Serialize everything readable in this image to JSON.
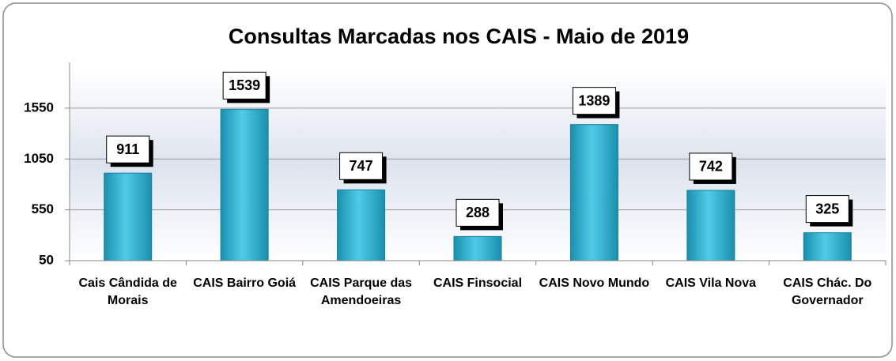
{
  "chart_data": {
    "type": "bar",
    "title": "Consultas Marcadas nos CAIS - Maio de 2019",
    "categories": [
      "Cais Cândida de Morais",
      "CAIS Bairro Goiá",
      "CAIS Parque das Amendoeiras",
      "CAIS Finsocial",
      "CAIS Novo Mundo",
      "CAIS Vila Nova",
      "CAIS Chác. Do Governador"
    ],
    "values": [
      911,
      1539,
      747,
      288,
      1389,
      742,
      325
    ],
    "color": "#35b8d6",
    "ylim": [
      50,
      2000
    ],
    "yticks": [
      50,
      550,
      1050,
      1550
    ],
    "grid": true
  }
}
